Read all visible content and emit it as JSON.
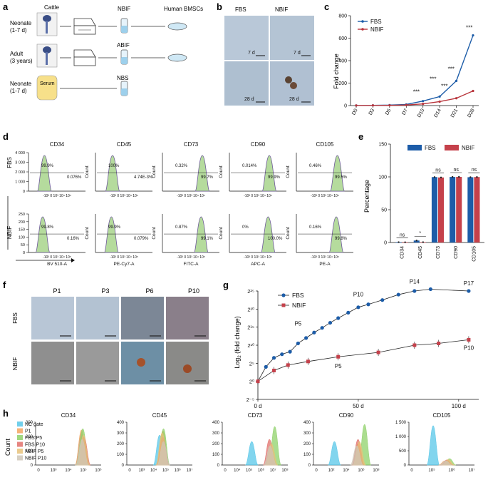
{
  "panels": {
    "a": "a",
    "b": "b",
    "c": "c",
    "d": "d",
    "e": "e",
    "f": "f",
    "g": "g",
    "h": "h"
  },
  "panel_a": {
    "source_header": "Cattle",
    "rows": [
      {
        "label_1": "Neonate",
        "label_2": "(1-7 d)",
        "product": "NBIF"
      },
      {
        "label_1": "Adult",
        "label_2": "(3 years)",
        "product": "ABIF"
      },
      {
        "label_1": "Neonate",
        "label_2": "(1-7 d)",
        "product": "NBS"
      }
    ],
    "serum_label": "Serum",
    "target_header": "Human BMSCs"
  },
  "panel_b": {
    "col_labels": [
      "FBS",
      "NBIF"
    ],
    "time_labels": [
      "7 d",
      "7 d",
      "28 d",
      "28 d"
    ]
  },
  "chart_c": {
    "type": "line",
    "ylabel": "Fold change",
    "categories": [
      "D0",
      "D3",
      "D5",
      "D7",
      "D10",
      "D14",
      "D21",
      "D28"
    ],
    "ylim": [
      0,
      800
    ],
    "yticks": [
      "0",
      "200",
      "400",
      "600",
      "800"
    ],
    "series": [
      {
        "name": "FBS",
        "values": [
          1,
          2,
          4,
          10,
          40,
          80,
          220,
          625
        ],
        "color": "#1c5ca8"
      },
      {
        "name": "NBIF",
        "values": [
          1,
          1.5,
          2,
          5,
          15,
          35,
          65,
          130
        ],
        "color": "#b8343b"
      }
    ],
    "annotations": [
      "***",
      "***",
      "***",
      "***",
      "***"
    ]
  },
  "panel_d": {
    "markers": [
      "CD34",
      "CD45",
      "CD73",
      "CD90",
      "CD105"
    ],
    "row_labels": [
      "FBS",
      "NBIF"
    ],
    "ylabel": "Count",
    "xlabels": [
      "BV 510-A",
      "PE-Cy7-A",
      "FITC-A",
      "APC-A",
      "PE-A"
    ],
    "fbs_pcts": [
      [
        "99.9%",
        "0.076%"
      ],
      [
        "100%",
        "4.74E-3%"
      ],
      [
        "0.32%",
        "99.7%"
      ],
      [
        "0.014%",
        "99.9%"
      ],
      [
        "0.46%",
        "99.5%"
      ]
    ],
    "nbif_pcts": [
      [
        "99.8%",
        "0.16%"
      ],
      [
        "99.9%",
        "0.079%"
      ],
      [
        "0.87%",
        "99.1%"
      ],
      [
        "0%",
        "100.0%"
      ],
      [
        "0.16%",
        "99.8%"
      ]
    ],
    "yticks_first": [
      "4 000",
      "3 000",
      "2 000",
      "1 000",
      "0"
    ],
    "yticks_first_b": [
      "250",
      "200",
      "150",
      "100",
      "50",
      "0"
    ],
    "xtick_text": "-10³ 0 10³ 10⁴ 10⁵"
  },
  "chart_e": {
    "type": "bar",
    "categories": [
      "CD34",
      "CD45",
      "CD73",
      "CD90",
      "CD105"
    ],
    "ylabel": "Percentage",
    "ylim": [
      0,
      150
    ],
    "yticks": [
      "0",
      "50",
      "100",
      "150"
    ],
    "series": [
      {
        "name": "FBS",
        "values": [
          0.5,
          3,
          99.7,
          99.9,
          99.5
        ],
        "color": "#1c5ca8"
      },
      {
        "name": "NBIF",
        "values": [
          0.3,
          0.5,
          99.1,
          100,
          99.8
        ],
        "color": "#c5414b"
      }
    ],
    "significance": [
      "ns",
      "*",
      "ns",
      "ns",
      "ns"
    ]
  },
  "panel_f": {
    "passages": [
      "P1",
      "P3",
      "P6",
      "P10"
    ],
    "row_labels": [
      "FBS",
      "NBIF"
    ]
  },
  "chart_g": {
    "type": "line",
    "ylabel_main": "Log",
    "ylabel_sub": "2",
    "ylabel_rest": " (fold change)",
    "xlim": [
      0,
      110
    ],
    "xticks": [
      "0 d",
      "50 d",
      "100 d"
    ],
    "yticks": [
      "2⁻⁵",
      "2⁰",
      "2⁵",
      "2¹⁰",
      "2¹⁵",
      "2²⁰",
      "2²⁵"
    ],
    "series": [
      {
        "name": "FBS",
        "color": "#1c5ca8",
        "x": [
          0,
          4,
          8,
          12,
          16,
          20,
          24,
          28,
          32,
          36,
          40,
          45,
          50,
          55,
          62,
          70,
          78,
          86,
          105
        ],
        "y": [
          0,
          4,
          6.5,
          7.5,
          8.2,
          10.5,
          12,
          13.5,
          14.8,
          16.2,
          17.5,
          19,
          20.5,
          21.3,
          22.5,
          24,
          25,
          25.5,
          25
        ]
      },
      {
        "name": "NBIF",
        "color": "#c5414b",
        "x": [
          0,
          8,
          15,
          25,
          40,
          60,
          78,
          90,
          105
        ],
        "y": [
          0,
          3,
          4.5,
          5.5,
          6.8,
          8,
          10,
          10.5,
          11.5
        ]
      }
    ],
    "point_labels": [
      "P5",
      "P10",
      "P14",
      "P17",
      "P5",
      "P10"
    ]
  },
  "chart_h": {
    "markers": [
      "CD34",
      "CD45",
      "CD73",
      "CD90",
      "CD105"
    ],
    "ylabel": "Count",
    "legend": [
      "NC gate",
      "P1",
      "FBS P5",
      "FBS P10",
      "NBIF P5",
      "NBIF P10"
    ],
    "legend_colors": [
      "#58c7e8",
      "#f4a460",
      "#8fd16a",
      "#e2706b",
      "#e7c27a",
      "#cfc7b8"
    ],
    "yticks": [
      [
        "0",
        "100",
        "200",
        "300"
      ],
      [
        "0",
        "100",
        "200",
        "300",
        "400"
      ],
      [
        "0",
        "100",
        "200",
        "300",
        "400"
      ],
      [
        "0",
        "100",
        "200",
        "300",
        "400"
      ],
      [
        "0",
        "500",
        "1 000",
        "1 500"
      ]
    ],
    "xticks": [
      [
        "0",
        "10³",
        "10⁴",
        "10⁵",
        "10⁶"
      ],
      [
        "0",
        "10³",
        "10⁴",
        "10⁵",
        "10⁶",
        "10⁷"
      ],
      [
        "0",
        "10⁴",
        "10⁵",
        "10⁶",
        "10⁷",
        "10⁸"
      ],
      [
        "0",
        "10²",
        "10⁴",
        "10⁶",
        "10⁸"
      ],
      [
        "0",
        "10⁵",
        "10⁶",
        "10⁷"
      ]
    ]
  }
}
